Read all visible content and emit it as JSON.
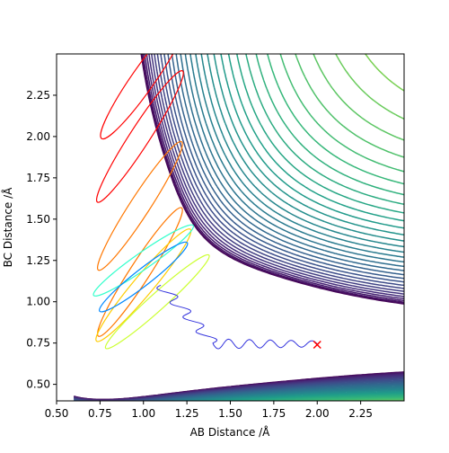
{
  "chart_data": {
    "type": "contour",
    "title": "",
    "xlabel": "AB Distance /Å",
    "ylabel": "BC Distance /Å",
    "xlim": [
      0.5,
      2.5
    ],
    "ylim": [
      0.4,
      2.5
    ],
    "x_ticks": [
      "0.50",
      "0.75",
      "1.00",
      "1.25",
      "1.50",
      "1.75",
      "2.00",
      "2.25"
    ],
    "y_ticks": [
      "0.50",
      "0.75",
      "1.00",
      "1.25",
      "1.50",
      "1.75",
      "2.00",
      "2.25"
    ],
    "x_tick_values": [
      0.5,
      0.75,
      1.0,
      1.25,
      1.5,
      1.75,
      2.0,
      2.25
    ],
    "y_tick_values": [
      0.5,
      0.75,
      1.0,
      1.25,
      1.5,
      1.75,
      2.0,
      2.25
    ],
    "colormap": "viridis",
    "contour_levels": 40,
    "grid": false,
    "legend": "none",
    "trajectory": {
      "color": "#3333dd",
      "start": [
        2.0,
        0.74
      ],
      "end": [
        1.15,
        1.1
      ]
    },
    "start_marker": {
      "symbol": "x",
      "color": "#ff0000",
      "x": 2.0,
      "y": 0.74
    },
    "overlay_contour_colors": [
      "#ff0000",
      "#ff7700",
      "#ffcc00",
      "#ccff33",
      "#33ffcc",
      "#0088ff"
    ]
  }
}
